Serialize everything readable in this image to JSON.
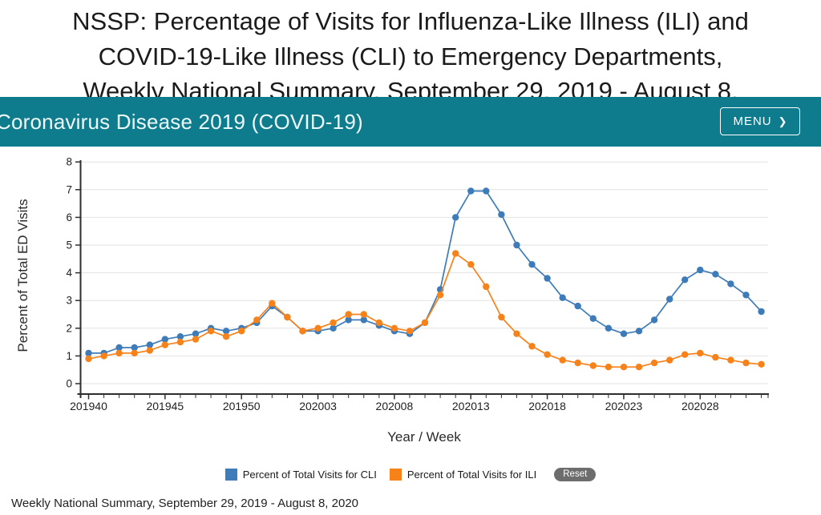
{
  "page": {
    "title_lines": [
      "NSSP: Percentage of Visits for Influenza-Like Illness (ILI) and",
      "COVID-19-Like Illness (CLI) to Emergency Departments,",
      "Weekly National Summary, September 29, 2019 - August 8,"
    ],
    "banner": {
      "title": "Coronavirus Disease 2019 (COVID-19)",
      "menu_label": "MENU",
      "menu_chevron": "❯",
      "background": "#0e7c8c"
    },
    "footer_note": "Weekly National Summary, September 29, 2019 - August 8, 2020"
  },
  "colors": {
    "banner_background": "#0e7c8c",
    "cli_blue": "#3e7cb9",
    "ili_orange": "#f8821a",
    "reset_gray": "#6d6d6d",
    "gridline": "#e2e2e2",
    "axis": "#2e2e2e"
  },
  "chart_data": {
    "type": "line",
    "title": "",
    "xlabel": "Year / Week",
    "ylabel": "Percent of Total ED Visits",
    "ylim": [
      0,
      8
    ],
    "y_ticks": [
      0,
      1,
      2,
      3,
      4,
      5,
      6,
      7,
      8
    ],
    "grid": true,
    "x_tick_every": 5,
    "x_tick_labels": [
      "201940",
      "201945",
      "201950",
      "202003",
      "202008",
      "202013",
      "202018",
      "202023",
      "202028"
    ],
    "categories": [
      "201940",
      "201941",
      "201942",
      "201943",
      "201944",
      "201945",
      "201946",
      "201947",
      "201948",
      "201949",
      "201950",
      "201951",
      "201952",
      "202001",
      "202002",
      "202003",
      "202004",
      "202005",
      "202006",
      "202007",
      "202008",
      "202009",
      "202010",
      "202011",
      "202012",
      "202013",
      "202014",
      "202015",
      "202016",
      "202017",
      "202018",
      "202019",
      "202020",
      "202021",
      "202022",
      "202023",
      "202024",
      "202025",
      "202026",
      "202027",
      "202028",
      "202029",
      "202030",
      "202031",
      "202032"
    ],
    "series": [
      {
        "key": "cli",
        "name": "Percent of Total Visits for CLI",
        "color": "#3e7cb9",
        "values": [
          1.1,
          1.1,
          1.3,
          1.3,
          1.4,
          1.6,
          1.7,
          1.8,
          2.0,
          1.9,
          2.0,
          2.2,
          2.8,
          2.4,
          1.9,
          1.9,
          2.0,
          2.3,
          2.3,
          2.1,
          1.9,
          1.8,
          2.2,
          3.4,
          6.0,
          6.95,
          6.95,
          6.1,
          5.0,
          4.3,
          3.8,
          3.1,
          2.8,
          2.35,
          2.0,
          1.8,
          1.9,
          2.3,
          3.05,
          3.75,
          4.1,
          3.95,
          3.6,
          3.2,
          2.6
        ]
      },
      {
        "key": "ili",
        "name": "Percent of Total Visits for ILI",
        "color": "#f8821a",
        "values": [
          0.9,
          1.0,
          1.1,
          1.1,
          1.2,
          1.4,
          1.5,
          1.6,
          1.9,
          1.7,
          1.9,
          2.3,
          2.9,
          2.4,
          1.9,
          2.0,
          2.2,
          2.5,
          2.5,
          2.2,
          2.0,
          1.9,
          2.2,
          3.2,
          4.7,
          4.3,
          3.5,
          2.4,
          1.8,
          1.35,
          1.05,
          0.85,
          0.75,
          0.65,
          0.6,
          0.6,
          0.6,
          0.75,
          0.85,
          1.05,
          1.1,
          0.95,
          0.85,
          0.75,
          0.7
        ]
      }
    ],
    "legend": {
      "position": "bottom",
      "reset_label": "Reset"
    }
  }
}
